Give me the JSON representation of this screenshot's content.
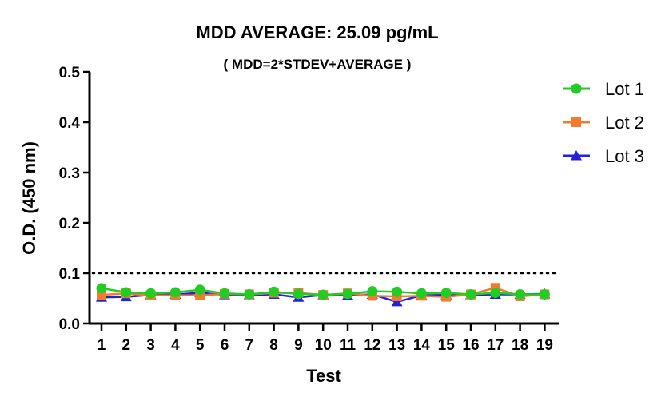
{
  "chart_data": {
    "type": "line",
    "title": "MDD AVERAGE:  25.09 pg/mL",
    "subtitle": "( MDD=2*STDEV+AVERAGE )",
    "xlabel": "Test",
    "ylabel": "O.D. (450 nm)",
    "categories": [
      "1",
      "2",
      "3",
      "4",
      "5",
      "6",
      "7",
      "8",
      "9",
      "10",
      "11",
      "12",
      "13",
      "14",
      "15",
      "16",
      "17",
      "18",
      "19"
    ],
    "yticks": [
      "0.0",
      "0.1",
      "0.2",
      "0.3",
      "0.4",
      "0.5"
    ],
    "ylim": [
      0,
      0.5
    ],
    "reference_line": {
      "y": 0.1,
      "style": "dotted"
    },
    "legend_position": "right",
    "grid": false,
    "series": [
      {
        "name": "Lot 1",
        "marker": "circle",
        "color": "#22cc22",
        "values": [
          0.07,
          0.062,
          0.06,
          0.062,
          0.067,
          0.06,
          0.058,
          0.063,
          0.059,
          0.057,
          0.059,
          0.064,
          0.063,
          0.06,
          0.061,
          0.058,
          0.061,
          0.058,
          0.058
        ]
      },
      {
        "name": "Lot 2",
        "marker": "square",
        "color": "#f47a30",
        "values": [
          0.057,
          0.06,
          0.056,
          0.056,
          0.056,
          0.059,
          0.058,
          0.061,
          0.061,
          0.057,
          0.06,
          0.055,
          0.054,
          0.055,
          0.053,
          0.058,
          0.071,
          0.054,
          0.058
        ]
      },
      {
        "name": "Lot 3",
        "marker": "triangle",
        "color": "#2222dd",
        "values": [
          0.052,
          0.053,
          0.057,
          0.058,
          0.061,
          0.057,
          0.057,
          0.058,
          0.052,
          0.057,
          0.056,
          0.058,
          0.043,
          0.056,
          0.057,
          0.057,
          0.058,
          0.058,
          0.059
        ]
      }
    ]
  }
}
